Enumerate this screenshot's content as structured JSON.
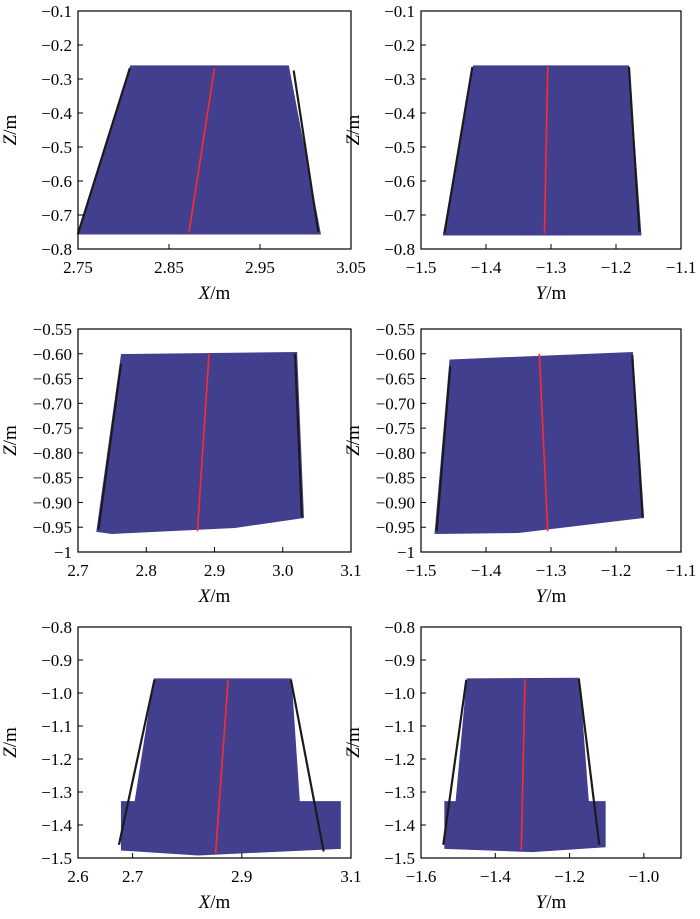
{
  "chart_data": [
    {
      "type": "scatter",
      "xlabel": "X/m",
      "ylabel": "Z/m",
      "xlim": [
        2.75,
        3.05
      ],
      "ylim": [
        -0.8,
        -0.1
      ],
      "xticks": [
        "2.75",
        "2.85",
        "2.95",
        "3.05"
      ],
      "yticks": [
        "-0.1",
        "-0.2",
        "-0.3",
        "-0.4",
        "-0.5",
        "-0.6",
        "-0.7",
        "-0.8"
      ],
      "cloud": [
        [
          2.808,
          -0.262
        ],
        [
          2.981,
          -0.262
        ],
        [
          3.016,
          -0.755
        ],
        [
          2.75,
          -0.755
        ]
      ],
      "edges": [
        [
          [
            2.75,
            -0.755
          ],
          [
            2.807,
            -0.268
          ]
        ],
        [
          [
            2.987,
            -0.275
          ],
          [
            3.014,
            -0.75
          ]
        ]
      ],
      "fit_line": [
        [
          2.872,
          -0.75
        ],
        [
          2.9,
          -0.268
        ]
      ],
      "cloud_color": "#433f8f",
      "edge_color": "#1b1b1b",
      "fit_color": "#ff2a2a"
    },
    {
      "type": "scatter",
      "xlabel": "Y/m",
      "ylabel": "Z/m",
      "xlim": [
        -1.5,
        -1.1
      ],
      "ylim": [
        -0.8,
        -0.1
      ],
      "xticks": [
        "-1.5",
        "-1.4",
        "-1.3",
        "-1.2",
        "-1.1"
      ],
      "yticks": [
        "-0.1",
        "-0.2",
        "-0.3",
        "-0.4",
        "-0.5",
        "-0.6",
        "-0.7",
        "-0.8"
      ],
      "cloud": [
        [
          -1.419,
          -0.262
        ],
        [
          -1.181,
          -0.262
        ],
        [
          -1.162,
          -0.758
        ],
        [
          -1.465,
          -0.758
        ]
      ],
      "edges": [
        [
          [
            -1.464,
            -0.755
          ],
          [
            -1.421,
            -0.265
          ]
        ],
        [
          [
            -1.18,
            -0.265
          ],
          [
            -1.164,
            -0.75
          ]
        ]
      ],
      "fit_line": [
        [
          -1.31,
          -0.753
        ],
        [
          -1.305,
          -0.263
        ]
      ],
      "cloud_color": "#433f8f",
      "edge_color": "#1b1b1b",
      "fit_color": "#ff2a2a"
    },
    {
      "type": "scatter",
      "xlabel": "X/m",
      "ylabel": "Z/m",
      "xlim": [
        2.7,
        3.1
      ],
      "ylim": [
        -1.0,
        -0.55
      ],
      "xticks": [
        "2.7",
        "2.8",
        "2.9",
        "3.0",
        "3.1"
      ],
      "yticks": [
        "-0.55",
        "-0.60",
        "-0.65",
        "-0.70",
        "-0.75",
        "-0.80",
        "-0.85",
        "-0.90",
        "-0.95",
        "-1"
      ],
      "cloud": [
        [
          2.764,
          -0.602
        ],
        [
          3.02,
          -0.598
        ],
        [
          3.03,
          -0.93
        ],
        [
          2.93,
          -0.95
        ],
        [
          2.75,
          -0.962
        ],
        [
          2.728,
          -0.958
        ]
      ],
      "edges": [
        [
          [
            2.73,
            -0.955
          ],
          [
            2.763,
            -0.62
          ]
        ],
        [
          [
            3.018,
            -0.6
          ],
          [
            3.028,
            -0.93
          ]
        ]
      ],
      "fit_line": [
        [
          2.875,
          -0.958
        ],
        [
          2.892,
          -0.6
        ]
      ],
      "cloud_color": "#433f8f",
      "edge_color": "#1b1b1b",
      "fit_color": "#ff2a2a"
    },
    {
      "type": "scatter",
      "xlabel": "Y/m",
      "ylabel": "Z/m",
      "xlim": [
        -1.5,
        -1.1
      ],
      "ylim": [
        -1.0,
        -0.55
      ],
      "xticks": [
        "-1.5",
        "-1.4",
        "-1.3",
        "-1.2",
        "-1.1"
      ],
      "yticks": [
        "-0.55",
        "-0.60",
        "-0.65",
        "-0.70",
        "-0.75",
        "-0.80",
        "-0.85",
        "-0.90",
        "-0.95",
        "-1"
      ],
      "cloud": [
        [
          -1.455,
          -0.613
        ],
        [
          -1.175,
          -0.598
        ],
        [
          -1.158,
          -0.93
        ],
        [
          -1.35,
          -0.96
        ],
        [
          -1.478,
          -0.962
        ]
      ],
      "edges": [
        [
          [
            -1.476,
            -0.958
          ],
          [
            -1.455,
            -0.625
          ]
        ],
        [
          [
            -1.175,
            -0.603
          ],
          [
            -1.159,
            -0.93
          ]
        ]
      ],
      "fit_line": [
        [
          -1.305,
          -0.958
        ],
        [
          -1.318,
          -0.6
        ]
      ],
      "cloud_color": "#433f8f",
      "edge_color": "#1b1b1b",
      "fit_color": "#ff2a2a"
    },
    {
      "type": "scatter",
      "xlabel": "X/m",
      "ylabel": "Z/m",
      "xlim": [
        2.6,
        3.1
      ],
      "ylim": [
        -1.5,
        -0.8
      ],
      "xticks": [
        "2.6",
        "2.7",
        "2.9",
        "3.1"
      ],
      "xtick_values": [
        2.6,
        2.7,
        2.9,
        3.1
      ],
      "yticks": [
        "-0.8",
        "-0.9",
        "-1.0",
        "-1.1",
        "-1.2",
        "-1.3",
        "-1.4",
        "-1.5"
      ],
      "cloud": [
        [
          2.74,
          -0.958
        ],
        [
          2.99,
          -0.958
        ],
        [
          3.005,
          -1.33
        ],
        [
          3.08,
          -1.33
        ],
        [
          3.08,
          -1.47
        ],
        [
          2.82,
          -1.49
        ],
        [
          2.68,
          -1.475
        ],
        [
          2.68,
          -1.33
        ],
        [
          2.705,
          -1.33
        ]
      ],
      "edges": [
        [
          [
            2.675,
            -1.46
          ],
          [
            2.74,
            -0.96
          ]
        ],
        [
          [
            2.99,
            -0.96
          ],
          [
            3.05,
            -1.48
          ]
        ]
      ],
      "fit_line": [
        [
          2.852,
          -1.485
        ],
        [
          2.875,
          -0.96
        ]
      ],
      "cloud_color": "#433f8f",
      "edge_color": "#1b1b1b",
      "fit_color": "#ff2a2a"
    },
    {
      "type": "scatter",
      "xlabel": "Y/m",
      "ylabel": "Z/m",
      "xlim": [
        -1.6,
        -0.9
      ],
      "ylim": [
        -1.5,
        -0.8
      ],
      "xticks": [
        "-1.6",
        "-1.4",
        "-1.2",
        "-1.0"
      ],
      "xtick_values": [
        -1.6,
        -1.4,
        -1.2,
        -1.0
      ],
      "yticks": [
        "-0.8",
        "-0.9",
        "-1.0",
        "-1.1",
        "-1.2",
        "-1.3",
        "-1.4",
        "-1.5"
      ],
      "cloud": [
        [
          -1.475,
          -0.958
        ],
        [
          -1.175,
          -0.956
        ],
        [
          -1.15,
          -1.33
        ],
        [
          -1.105,
          -1.33
        ],
        [
          -1.105,
          -1.465
        ],
        [
          -1.3,
          -1.48
        ],
        [
          -1.535,
          -1.47
        ],
        [
          -1.535,
          -1.33
        ],
        [
          -1.505,
          -1.33
        ]
      ],
      "edges": [
        [
          [
            -1.54,
            -1.46
          ],
          [
            -1.478,
            -0.96
          ]
        ],
        [
          [
            -1.175,
            -0.958
          ],
          [
            -1.12,
            -1.46
          ]
        ]
      ],
      "fit_line": [
        [
          -1.33,
          -1.475
        ],
        [
          -1.32,
          -0.958
        ]
      ],
      "cloud_color": "#433f8f",
      "edge_color": "#1b1b1b",
      "fit_color": "#ff2a2a"
    }
  ]
}
